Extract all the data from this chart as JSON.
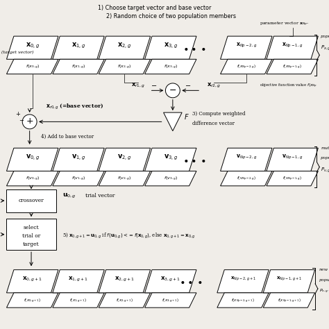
{
  "title_line1": "1) Choose target vector and base vector",
  "title_line2": "2) Random choice of two population members",
  "bg_color": "#f0ede8",
  "box_facecolor": "#ffffff",
  "box_edgecolor": "#000000",
  "fig_width": 4.74,
  "fig_height": 4.74,
  "dpi": 100,
  "xlim": [
    0,
    100
  ],
  "ylim": [
    0,
    100
  ]
}
